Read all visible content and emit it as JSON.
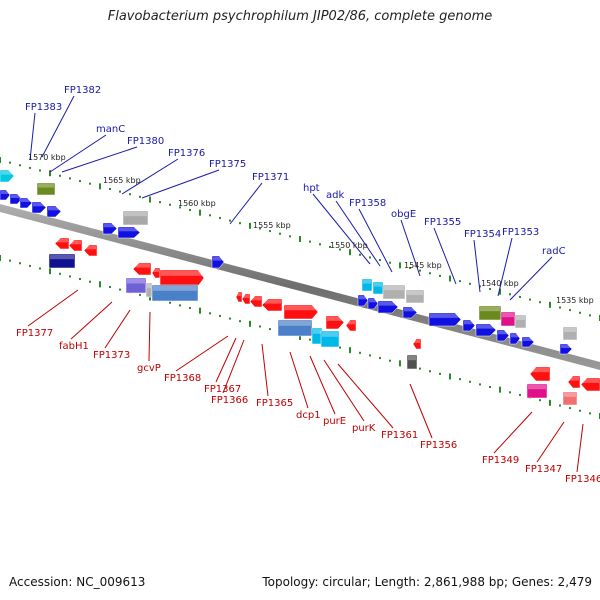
{
  "title": "Flavobacterium psychrophilum JIP02/86, complete genome",
  "footer": {
    "accession": "Accession: NC_009613",
    "summary": "Topology: circular; Length: 2,861,988 bp; Genes: 2,479"
  },
  "colors": {
    "backbone": "#7a7a7a",
    "top_label": "#1a1aa8",
    "bottom_label": "#c00000",
    "tick": "#2a8a2a"
  },
  "kbp_labels": [
    "1570 kbp",
    "1565 kbp",
    "1560 kbp",
    "1555 kbp",
    "1550 kbp",
    "1545 kbp",
    "1540 kbp",
    "1535 kbp"
  ],
  "top_labels": [
    "FP1383",
    "FP1382",
    "manC",
    "FP1380",
    "FP1376",
    "FP1375",
    "FP1371",
    "hpt",
    "adk",
    "FP1358",
    "obgE",
    "FP1355",
    "FP1354",
    "FP1353",
    "radC"
  ],
  "bottom_labels": [
    "FP1377",
    "fabH1",
    "FP1373",
    "gcvP",
    "FP1368",
    "FP1367",
    "FP1366",
    "FP1365",
    "dcp1",
    "purE",
    "purK",
    "FP1361",
    "FP1356",
    "FP1349",
    "FP1347",
    "FP1346"
  ]
}
